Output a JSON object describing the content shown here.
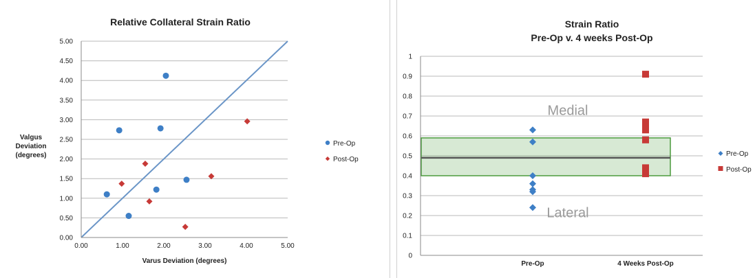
{
  "chart_data": [
    {
      "type": "scatter",
      "title": "Relative Collateral Strain Ratio",
      "xlabel": "Varus Deviation (degrees)",
      "ylabel": [
        "Valgus",
        "Deviation",
        "(degrees)"
      ],
      "xlim": [
        0,
        5
      ],
      "ylim": [
        0,
        5
      ],
      "xticks": [
        "0.00",
        "1.00",
        "2.00",
        "3.00",
        "4.00",
        "5.00"
      ],
      "yticks": [
        "0.00",
        "0.50",
        "1.00",
        "1.50",
        "2.00",
        "2.50",
        "3.00",
        "3.50",
        "4.00",
        "4.50",
        "5.00"
      ],
      "grid": true,
      "legend_position": "right",
      "reference_line": {
        "from": [
          0,
          0
        ],
        "to": [
          5,
          5
        ],
        "color": "#6a95c7"
      },
      "series": [
        {
          "name": "Pre-Op",
          "marker": "circle",
          "color": "#3e7fc6",
          "points": [
            [
              0.62,
              1.1
            ],
            [
              0.92,
              2.73
            ],
            [
              1.15,
              0.55
            ],
            [
              1.82,
              1.22
            ],
            [
              1.92,
              2.78
            ],
            [
              2.05,
              4.12
            ],
            [
              2.55,
              1.47
            ]
          ]
        },
        {
          "name": "Post-Op",
          "marker": "diamond",
          "color": "#c73a37",
          "points": [
            [
              0.98,
              1.37
            ],
            [
              1.55,
              1.88
            ],
            [
              1.65,
              0.92
            ],
            [
              2.52,
              0.27
            ],
            [
              3.15,
              1.56
            ],
            [
              4.02,
              2.96
            ]
          ]
        }
      ]
    },
    {
      "type": "scatter",
      "title": [
        "Strain Ratio",
        "Pre-Op v. 4 weeks Post-Op"
      ],
      "categories": [
        "Pre-Op",
        "4 Weeks Post-Op"
      ],
      "ylim": [
        0,
        1
      ],
      "yticks": [
        "0",
        "0.1",
        "0.2",
        "0.3",
        "0.4",
        "0.5",
        "0.6",
        "0.7",
        "0.8",
        "0.9",
        "1"
      ],
      "grid": true,
      "legend_position": "right",
      "band": {
        "low": 0.4,
        "high": 0.59,
        "color": "#4a9a3c"
      },
      "reference_line": {
        "y": 0.49,
        "color": "#555555"
      },
      "annotations": [
        {
          "text": "Medial",
          "y": 0.73
        },
        {
          "text": "Lateral",
          "y": 0.215
        }
      ],
      "series": [
        {
          "name": "Pre-Op",
          "marker": "diamond",
          "color": "#3e7fc6",
          "category": 0,
          "values": [
            0.63,
            0.57,
            0.4,
            0.36,
            0.33,
            0.32,
            0.24
          ]
        },
        {
          "name": "Post-Op",
          "marker": "square",
          "color": "#c73a37",
          "category": 1,
          "values": [
            0.91,
            0.67,
            0.65,
            0.63,
            0.58,
            0.44,
            0.42,
            0.41
          ]
        }
      ]
    }
  ]
}
